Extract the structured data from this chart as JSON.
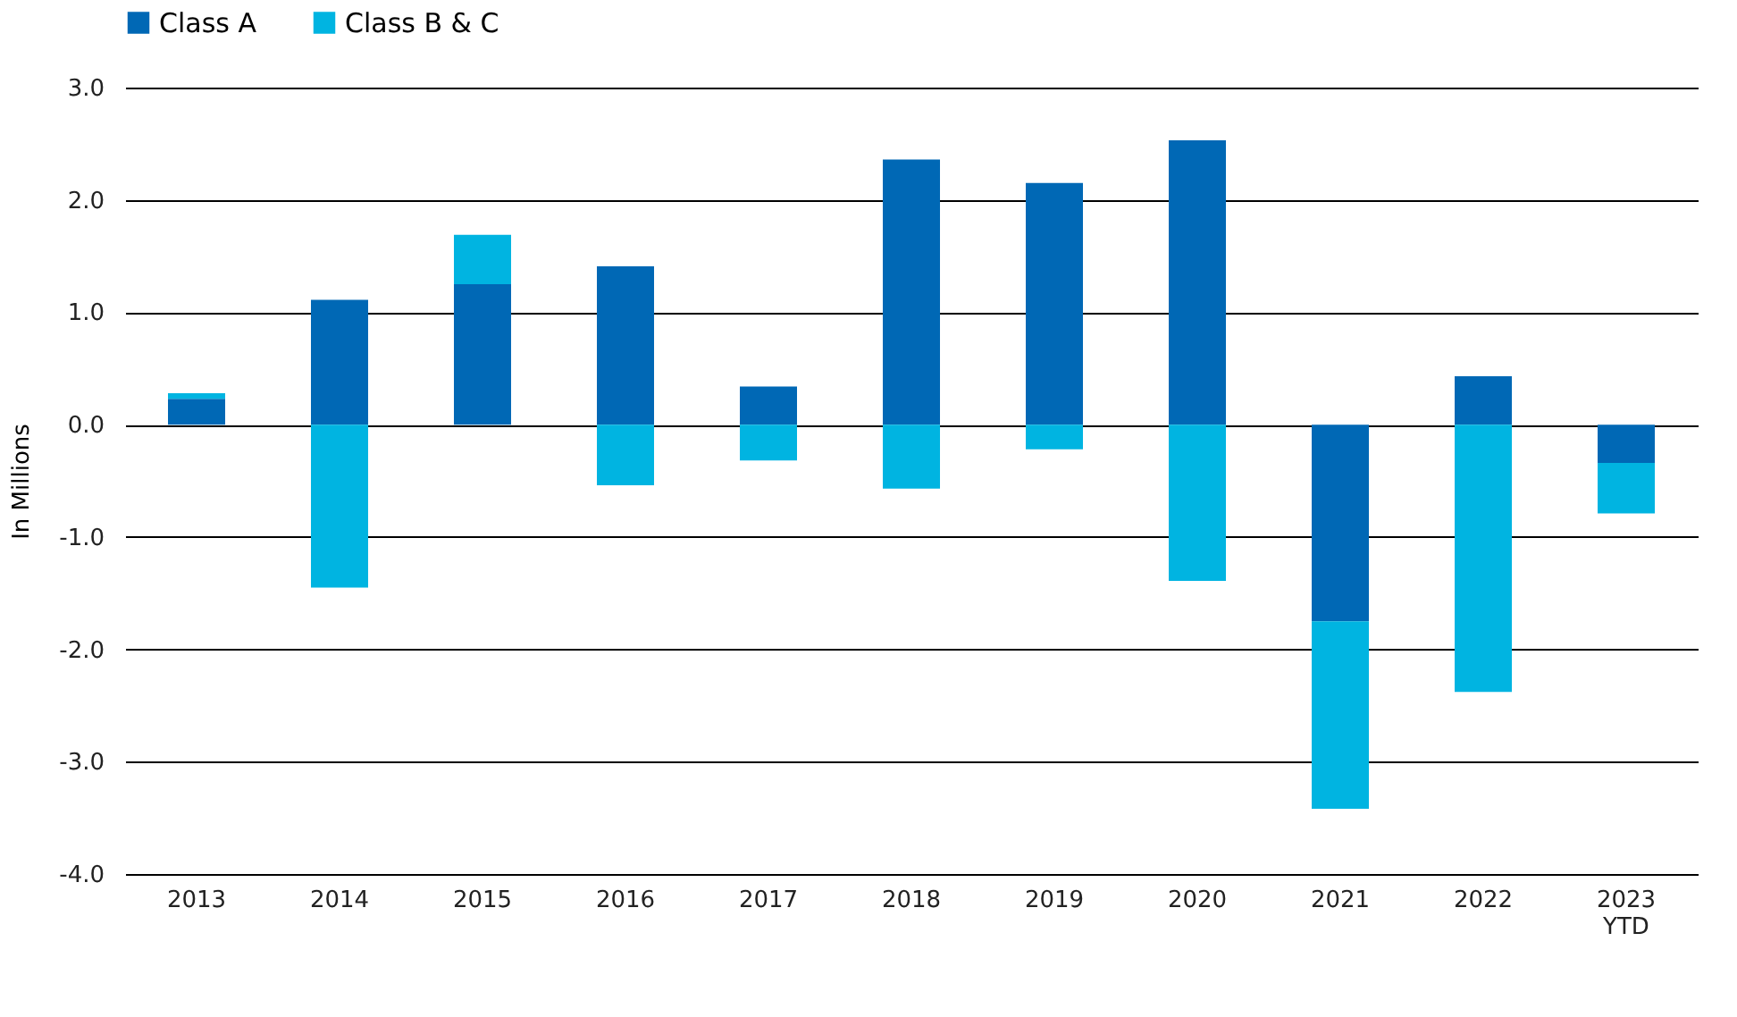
{
  "chart_data": {
    "type": "bar",
    "stacked": true,
    "ylabel": "In Millions",
    "categories": [
      "2013",
      "2014",
      "2015",
      "2016",
      "2017",
      "2018",
      "2019",
      "2020",
      "2021",
      "2022",
      "2023 YTD"
    ],
    "series": [
      {
        "name": "Class A",
        "color": "#0068b5",
        "values": [
          0.23,
          1.11,
          1.25,
          1.41,
          0.34,
          2.36,
          2.15,
          2.53,
          -1.75,
          0.43,
          -0.34
        ]
      },
      {
        "name": "Class B & C",
        "color": "#00b4e1",
        "values": [
          0.05,
          -1.45,
          0.44,
          -0.54,
          -0.32,
          -0.57,
          -0.22,
          -1.39,
          -1.67,
          -2.38,
          -0.45
        ]
      }
    ],
    "ylim": [
      -4.0,
      3.0
    ],
    "yticks": [
      {
        "value": -4,
        "label": "-4.0"
      },
      {
        "value": -3,
        "label": "-3.0"
      },
      {
        "value": -2,
        "label": "-2.0"
      },
      {
        "value": -1,
        "label": "-1.0"
      },
      {
        "value": 0,
        "label": "0.0"
      },
      {
        "value": 1,
        "label": "1.0"
      },
      {
        "value": 2,
        "label": "2.0"
      },
      {
        "value": 3,
        "label": "3.0"
      }
    ],
    "grid": "y",
    "legend": "top left"
  }
}
